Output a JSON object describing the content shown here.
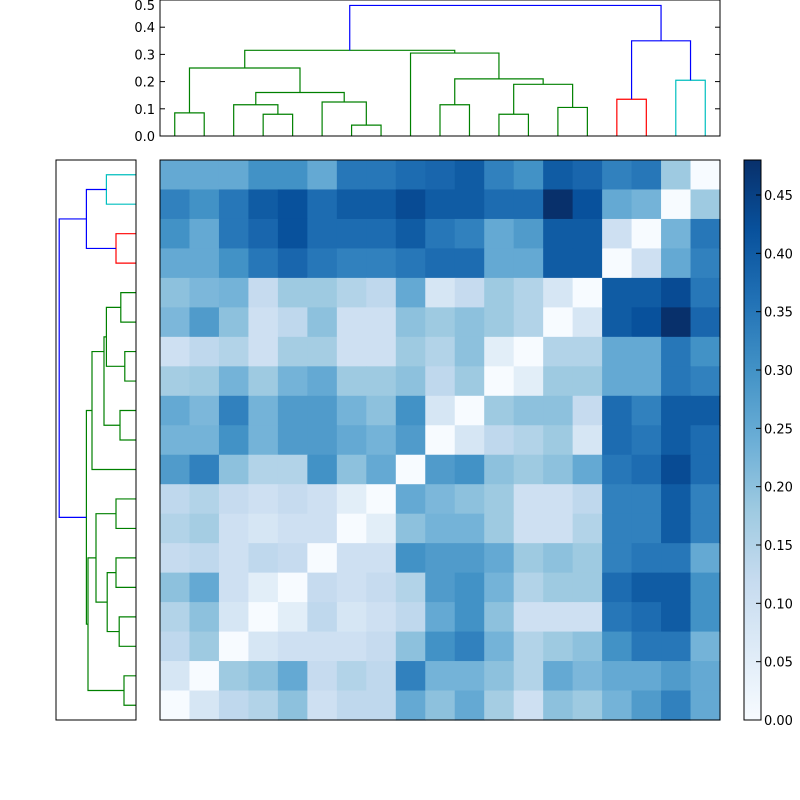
{
  "chart_data": [
    {
      "type": "dendrogram",
      "name_hint": "top",
      "title": "",
      "yticks": [
        "0.0",
        "0.1",
        "0.2",
        "0.3",
        "0.4",
        "0.5"
      ],
      "ylim": [
        0,
        0.5
      ],
      "links": [
        {
          "c": "#008000",
          "x": [
            0.5,
            0.5,
            1.5,
            1.5
          ],
          "y": [
            0,
            0.085,
            0.085,
            0
          ]
        },
        {
          "c": "#008000",
          "x": [
            3.5,
            3.5,
            4.5,
            4.5
          ],
          "y": [
            0,
            0.08,
            0.08,
            0
          ]
        },
        {
          "c": "#008000",
          "x": [
            2.5,
            2.5,
            4.0,
            4.0
          ],
          "y": [
            0,
            0.115,
            0.115,
            0.08
          ]
        },
        {
          "c": "#008000",
          "x": [
            6.5,
            6.5,
            7.5,
            7.5
          ],
          "y": [
            0,
            0.04,
            0.04,
            0
          ]
        },
        {
          "c": "#008000",
          "x": [
            5.5,
            5.5,
            7.0,
            7.0
          ],
          "y": [
            0,
            0.125,
            0.125,
            0.04
          ]
        },
        {
          "c": "#008000",
          "x": [
            3.25,
            3.25,
            6.25,
            6.25
          ],
          "y": [
            0.115,
            0.16,
            0.16,
            0.125
          ]
        },
        {
          "c": "#008000",
          "x": [
            1.0,
            1.0,
            4.75,
            4.75
          ],
          "y": [
            0.085,
            0.25,
            0.25,
            0.16
          ]
        },
        {
          "c": "#008000",
          "x": [
            9.5,
            9.5,
            10.5,
            10.5
          ],
          "y": [
            0,
            0.115,
            0.115,
            0
          ]
        },
        {
          "c": "#008000",
          "x": [
            11.5,
            11.5,
            12.5,
            12.5
          ],
          "y": [
            0,
            0.08,
            0.08,
            0
          ]
        },
        {
          "c": "#008000",
          "x": [
            13.5,
            13.5,
            14.5,
            14.5
          ],
          "y": [
            0,
            0.105,
            0.105,
            0
          ]
        },
        {
          "c": "#008000",
          "x": [
            12.0,
            12.0,
            14.0,
            14.0
          ],
          "y": [
            0.08,
            0.19,
            0.19,
            0.105
          ]
        },
        {
          "c": "#008000",
          "x": [
            10.0,
            10.0,
            13.0,
            13.0
          ],
          "y": [
            0.115,
            0.21,
            0.21,
            0.19
          ]
        },
        {
          "c": "#008000",
          "x": [
            8.5,
            8.5,
            11.5,
            11.5
          ],
          "y": [
            0,
            0.305,
            0.305,
            0.21
          ]
        },
        {
          "c": "#008000",
          "x": [
            2.875,
            2.875,
            10.0,
            10.0
          ],
          "y": [
            0.25,
            0.315,
            0.315,
            0.305
          ]
        },
        {
          "c": "#ff0000",
          "x": [
            15.5,
            15.5,
            16.5,
            16.5
          ],
          "y": [
            0,
            0.135,
            0.135,
            0
          ]
        },
        {
          "c": "#00bfbf",
          "x": [
            17.5,
            17.5,
            18.5,
            18.5
          ],
          "y": [
            0,
            0.205,
            0.205,
            0
          ]
        },
        {
          "c": "#0000ff",
          "x": [
            16.0,
            16.0,
            18.0,
            18.0
          ],
          "y": [
            0.135,
            0.35,
            0.35,
            0.205
          ]
        },
        {
          "c": "#0000ff",
          "x": [
            6.4375,
            6.4375,
            17.0,
            17.0
          ],
          "y": [
            0.315,
            0.48,
            0.48,
            0.35
          ]
        }
      ]
    },
    {
      "type": "dendrogram",
      "name_hint": "left",
      "title": "",
      "links": [
        {
          "c": "#00bfbf",
          "x": [
            0.5,
            0.5,
            1.5,
            1.5
          ],
          "y": [
            0,
            0.185,
            0.185,
            0
          ]
        },
        {
          "c": "#ff0000",
          "x": [
            2.5,
            2.5,
            3.5,
            3.5
          ],
          "y": [
            0,
            0.125,
            0.125,
            0
          ]
        },
        {
          "c": "#0000ff",
          "x": [
            1.0,
            1.0,
            3.0,
            3.0
          ],
          "y": [
            0.185,
            0.31,
            0.31,
            0.125
          ]
        },
        {
          "c": "#008000",
          "x": [
            4.5,
            4.5,
            5.5,
            5.5
          ],
          "y": [
            0,
            0.095,
            0.095,
            0
          ]
        },
        {
          "c": "#008000",
          "x": [
            6.5,
            6.5,
            7.5,
            7.5
          ],
          "y": [
            0,
            0.07,
            0.07,
            0
          ]
        },
        {
          "c": "#008000",
          "x": [
            5.0,
            5.0,
            7.0,
            7.0
          ],
          "y": [
            0.095,
            0.185,
            0.185,
            0.07
          ]
        },
        {
          "c": "#008000",
          "x": [
            8.5,
            8.5,
            9.5,
            9.5
          ],
          "y": [
            0,
            0.1,
            0.1,
            0
          ]
        },
        {
          "c": "#008000",
          "x": [
            6.0,
            6.0,
            9.0,
            9.0
          ],
          "y": [
            0.185,
            0.2,
            0.2,
            0.1
          ]
        },
        {
          "c": "#008000",
          "x": [
            10.5,
            10.5,
            6.5,
            6.5
          ],
          "y": [
            0,
            0.275,
            0.275,
            0.2
          ]
        },
        {
          "c": "#008000",
          "x": [
            11.5,
            11.5,
            12.5,
            12.5
          ],
          "y": [
            0,
            0.125,
            0.125,
            0
          ]
        },
        {
          "c": "#008000",
          "x": [
            13.5,
            13.5,
            14.5,
            14.5
          ],
          "y": [
            0,
            0.125,
            0.125,
            0
          ]
        },
        {
          "c": "#008000",
          "x": [
            15.5,
            15.5,
            16.5,
            16.5
          ],
          "y": [
            0,
            0.105,
            0.105,
            0
          ]
        },
        {
          "c": "#008000",
          "x": [
            14.0,
            14.0,
            16.0,
            16.0
          ],
          "y": [
            0.125,
            0.18,
            0.18,
            0.105
          ]
        },
        {
          "c": "#008000",
          "x": [
            12.0,
            12.0,
            15.0,
            15.0
          ],
          "y": [
            0.125,
            0.25,
            0.25,
            0.18
          ]
        },
        {
          "c": "#008000",
          "x": [
            17.5,
            17.5,
            18.5,
            18.5
          ],
          "y": [
            0,
            0.075,
            0.075,
            0
          ]
        },
        {
          "c": "#008000",
          "x": [
            13.5,
            13.5,
            18.0,
            18.0
          ],
          "y": [
            0.25,
            0.3,
            0.3,
            0.075
          ]
        },
        {
          "c": "#008000",
          "x": [
            8.5,
            8.5,
            15.75,
            15.75
          ],
          "y": [
            0.275,
            0.31,
            0.31,
            0.3
          ]
        },
        {
          "c": "#0000ff",
          "x": [
            2.0,
            2.0,
            12.125,
            12.125
          ],
          "y": [
            0.31,
            0.48,
            0.48,
            0.31
          ]
        }
      ]
    },
    {
      "type": "heatmap",
      "title": "",
      "rows": 19,
      "cols": 19,
      "values": [
        [
          0.25,
          0.25,
          0.25,
          0.3,
          0.3,
          0.25,
          0.35,
          0.35,
          0.37,
          0.38,
          0.4,
          0.33,
          0.3,
          0.4,
          0.38,
          0.33,
          0.35,
          0.18,
          0.0
        ],
        [
          0.33,
          0.3,
          0.35,
          0.4,
          0.42,
          0.37,
          0.4,
          0.4,
          0.43,
          0.4,
          0.4,
          0.37,
          0.37,
          0.48,
          0.42,
          0.25,
          0.23,
          0.0,
          0.18
        ],
        [
          0.3,
          0.25,
          0.35,
          0.38,
          0.42,
          0.37,
          0.37,
          0.37,
          0.4,
          0.35,
          0.33,
          0.25,
          0.28,
          0.4,
          0.4,
          0.1,
          0.0,
          0.23,
          0.35
        ],
        [
          0.25,
          0.25,
          0.3,
          0.35,
          0.38,
          0.35,
          0.33,
          0.33,
          0.35,
          0.37,
          0.37,
          0.25,
          0.25,
          0.4,
          0.4,
          0.0,
          0.1,
          0.25,
          0.33
        ],
        [
          0.2,
          0.22,
          0.23,
          0.12,
          0.18,
          0.18,
          0.15,
          0.13,
          0.25,
          0.08,
          0.12,
          0.18,
          0.15,
          0.08,
          0.0,
          0.4,
          0.4,
          0.43,
          0.35
        ],
        [
          0.22,
          0.28,
          0.2,
          0.1,
          0.13,
          0.2,
          0.1,
          0.1,
          0.2,
          0.18,
          0.2,
          0.18,
          0.15,
          0.0,
          0.08,
          0.4,
          0.42,
          0.48,
          0.38
        ],
        [
          0.1,
          0.13,
          0.15,
          0.1,
          0.17,
          0.17,
          0.1,
          0.1,
          0.18,
          0.15,
          0.2,
          0.05,
          0.0,
          0.15,
          0.15,
          0.25,
          0.25,
          0.35,
          0.3
        ],
        [
          0.17,
          0.18,
          0.23,
          0.18,
          0.23,
          0.25,
          0.18,
          0.18,
          0.2,
          0.13,
          0.18,
          0.0,
          0.05,
          0.18,
          0.18,
          0.25,
          0.25,
          0.35,
          0.33
        ],
        [
          0.25,
          0.22,
          0.33,
          0.23,
          0.28,
          0.28,
          0.23,
          0.2,
          0.3,
          0.08,
          0.0,
          0.18,
          0.2,
          0.2,
          0.12,
          0.37,
          0.33,
          0.4,
          0.4
        ],
        [
          0.23,
          0.23,
          0.3,
          0.23,
          0.28,
          0.28,
          0.25,
          0.23,
          0.28,
          0.0,
          0.08,
          0.13,
          0.15,
          0.18,
          0.08,
          0.37,
          0.35,
          0.4,
          0.37
        ],
        [
          0.28,
          0.33,
          0.2,
          0.15,
          0.15,
          0.3,
          0.2,
          0.25,
          0.0,
          0.28,
          0.3,
          0.2,
          0.18,
          0.2,
          0.25,
          0.35,
          0.37,
          0.43,
          0.37
        ],
        [
          0.13,
          0.15,
          0.12,
          0.1,
          0.12,
          0.1,
          0.05,
          0.0,
          0.25,
          0.22,
          0.2,
          0.18,
          0.1,
          0.1,
          0.13,
          0.33,
          0.33,
          0.4,
          0.33
        ],
        [
          0.15,
          0.17,
          0.1,
          0.08,
          0.1,
          0.1,
          0.0,
          0.05,
          0.2,
          0.23,
          0.23,
          0.18,
          0.1,
          0.1,
          0.15,
          0.33,
          0.33,
          0.4,
          0.33
        ],
        [
          0.12,
          0.13,
          0.1,
          0.13,
          0.12,
          0.0,
          0.1,
          0.1,
          0.3,
          0.28,
          0.28,
          0.25,
          0.18,
          0.2,
          0.18,
          0.33,
          0.35,
          0.35,
          0.25
        ],
        [
          0.2,
          0.25,
          0.1,
          0.05,
          0.0,
          0.12,
          0.1,
          0.12,
          0.15,
          0.28,
          0.3,
          0.23,
          0.15,
          0.18,
          0.18,
          0.37,
          0.4,
          0.4,
          0.3
        ],
        [
          0.15,
          0.2,
          0.08,
          0.0,
          0.05,
          0.13,
          0.08,
          0.1,
          0.13,
          0.25,
          0.3,
          0.2,
          0.1,
          0.1,
          0.1,
          0.35,
          0.37,
          0.4,
          0.3
        ],
        [
          0.13,
          0.18,
          0.0,
          0.08,
          0.1,
          0.1,
          0.1,
          0.12,
          0.2,
          0.3,
          0.33,
          0.23,
          0.15,
          0.18,
          0.2,
          0.3,
          0.35,
          0.35,
          0.23
        ],
        [
          0.08,
          0.0,
          0.18,
          0.2,
          0.25,
          0.12,
          0.15,
          0.13,
          0.33,
          0.23,
          0.23,
          0.2,
          0.15,
          0.25,
          0.22,
          0.25,
          0.25,
          0.28,
          0.25
        ],
        [
          0.0,
          0.08,
          0.13,
          0.15,
          0.2,
          0.1,
          0.13,
          0.13,
          0.25,
          0.2,
          0.25,
          0.17,
          0.1,
          0.2,
          0.18,
          0.23,
          0.28,
          0.33,
          0.25
        ]
      ],
      "colorbar": {
        "min": 0,
        "max": 0.48,
        "ticks": [
          "0.00",
          "0.05",
          "0.10",
          "0.15",
          "0.20",
          "0.25",
          "0.30",
          "0.35",
          "0.40",
          "0.45"
        ],
        "colormap": "Blues"
      }
    }
  ]
}
